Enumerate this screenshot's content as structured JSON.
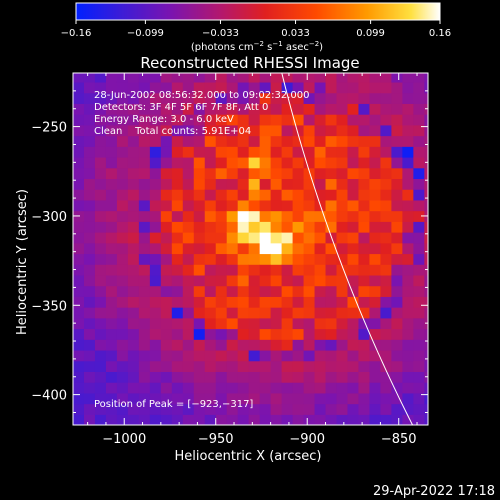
{
  "chart_data": {
    "type": "heatmap",
    "title": "Reconstructed RHESSI Image",
    "xlabel": "Heliocentric X (arcsec)",
    "ylabel": "Heliocentric Y (arcsec)",
    "xlim": [
      -1028,
      -834
    ],
    "ylim": [
      -417,
      -220
    ],
    "xticks": [
      -1000,
      -950,
      -900,
      -850
    ],
    "xtick_labels": [
      "−1000",
      "−950",
      "−900",
      "−850"
    ],
    "yticks": [
      -250,
      -300,
      -350,
      -400
    ],
    "ytick_labels": [
      "−250",
      "−300",
      "−350",
      "−400"
    ],
    "colorbar": {
      "min": -0.16,
      "max": 0.16,
      "ticks": [
        -0.16,
        -0.099,
        -0.033,
        0.033,
        0.099,
        0.16
      ],
      "tick_labels": [
        "−0.16",
        "−0.099",
        "−0.033",
        "0.033",
        "0.099",
        "0.16"
      ],
      "units_prefix": "(photons cm",
      "units_exp1": "−2",
      "units_mid": " s",
      "units_exp2": "−1",
      "units_mid2": " asec",
      "units_exp3": "−2",
      "units_suffix": ")",
      "colormap": "fire"
    },
    "peak": {
      "x": -923,
      "y": -317,
      "value": 0.16
    },
    "annotations": [
      "28-Jun-2002 08:56:32.000 to 09:02:32.000",
      "Detectors: 3F 4F 5F 6F 7F 8F, Att 0",
      "Energy Range: 3.0 - 6.0 keV",
      "Clean    Total counts: 5.91E+04"
    ],
    "peak_label": "Position of Peak = [−923,−317]",
    "grid": false,
    "limb": {
      "color": "#ffffff"
    }
  },
  "footer": {
    "timestamp": "29-Apr-2022 17:18"
  }
}
